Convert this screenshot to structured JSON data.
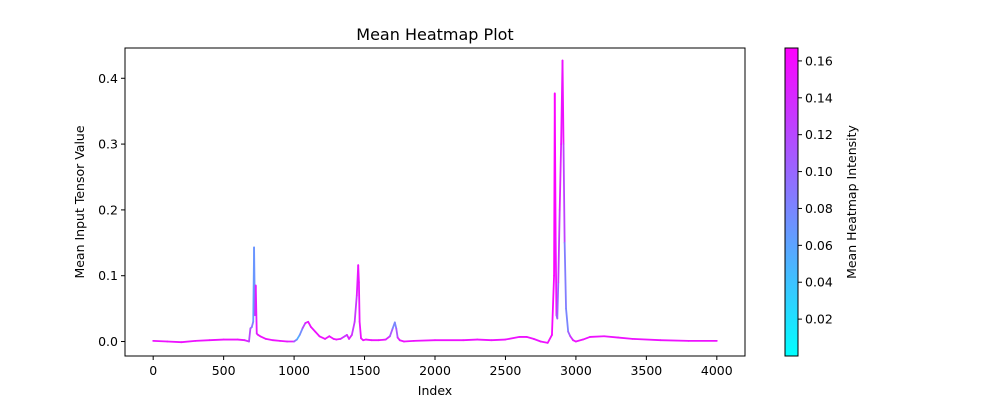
{
  "chart_data": {
    "type": "line",
    "title": "Mean Heatmap Plot",
    "xlabel": "Index",
    "ylabel": "Mean Input Tensor Value",
    "xlim": [
      -200,
      4200
    ],
    "ylim": [
      -0.022,
      0.446
    ],
    "xticks": [
      0,
      500,
      1000,
      1500,
      2000,
      2500,
      3000,
      3500,
      4000
    ],
    "yticks": [
      0.0,
      0.1,
      0.2,
      0.3,
      0.4
    ],
    "grid": false,
    "colorbar": {
      "label": "Mean Heatmap Intensity",
      "colormap": "cool",
      "range": [
        0.0,
        0.167
      ],
      "ticks": [
        0.02,
        0.04,
        0.06,
        0.08,
        0.1,
        0.12,
        0.14,
        0.16
      ],
      "min_color": "#00ffff",
      "max_color": "#ff00ff"
    },
    "series": [
      {
        "x": [
          0,
          100,
          200,
          300,
          400,
          500,
          600,
          650,
          680,
          690,
          700,
          710,
          716,
          722,
          728,
          735,
          745,
          760,
          800,
          850,
          900,
          950,
          1000,
          1020,
          1040,
          1060,
          1080,
          1100,
          1120,
          1150,
          1180,
          1220,
          1250,
          1280,
          1300,
          1330,
          1360,
          1375,
          1390,
          1410,
          1430,
          1445,
          1455,
          1460,
          1465,
          1475,
          1490,
          1510,
          1550,
          1600,
          1650,
          1680,
          1700,
          1715,
          1725,
          1735,
          1750,
          1780,
          1850,
          2000,
          2200,
          2300,
          2400,
          2500,
          2600,
          2650,
          2700,
          2750,
          2800,
          2830,
          2845,
          2850,
          2856,
          2862,
          2868,
          2875,
          2885,
          2895,
          2905,
          2912,
          2920,
          2930,
          2945,
          2960,
          2980,
          3000,
          3050,
          3100,
          3200,
          3300,
          3400,
          3600,
          3800,
          4000
        ],
        "y": [
          0.001,
          0.0,
          -0.001,
          0.001,
          0.002,
          0.003,
          0.003,
          0.002,
          0.0,
          0.02,
          0.022,
          0.03,
          0.143,
          0.04,
          0.085,
          0.012,
          0.01,
          0.008,
          0.004,
          0.002,
          0.001,
          0.0,
          0.0,
          0.003,
          0.01,
          0.02,
          0.028,
          0.03,
          0.022,
          0.015,
          0.008,
          0.004,
          0.008,
          0.004,
          0.003,
          0.004,
          0.008,
          0.01,
          0.004,
          0.01,
          0.03,
          0.07,
          0.116,
          0.09,
          0.03,
          0.005,
          0.002,
          0.003,
          0.002,
          0.002,
          0.003,
          0.008,
          0.02,
          0.029,
          0.02,
          0.006,
          0.002,
          0.0,
          0.001,
          0.002,
          0.002,
          0.003,
          0.002,
          0.003,
          0.007,
          0.007,
          0.004,
          0.0,
          -0.002,
          0.01,
          0.1,
          0.377,
          0.16,
          0.04,
          0.035,
          0.09,
          0.2,
          0.3,
          0.427,
          0.3,
          0.15,
          0.05,
          0.015,
          0.008,
          0.002,
          0.0,
          0.003,
          0.007,
          0.008,
          0.006,
          0.004,
          0.002,
          0.001,
          0.001
        ],
        "intensity": [
          0.155,
          0.155,
          0.155,
          0.155,
          0.155,
          0.155,
          0.155,
          0.155,
          0.13,
          0.11,
          0.1,
          0.08,
          0.05,
          0.09,
          0.16,
          0.14,
          0.15,
          0.155,
          0.155,
          0.155,
          0.155,
          0.155,
          0.14,
          0.06,
          0.05,
          0.1,
          0.14,
          0.155,
          0.155,
          0.155,
          0.155,
          0.155,
          0.155,
          0.155,
          0.155,
          0.155,
          0.12,
          0.13,
          0.155,
          0.14,
          0.12,
          0.14,
          0.155,
          0.155,
          0.155,
          0.155,
          0.155,
          0.155,
          0.155,
          0.155,
          0.155,
          0.13,
          0.09,
          0.07,
          0.09,
          0.13,
          0.155,
          0.155,
          0.155,
          0.155,
          0.155,
          0.155,
          0.155,
          0.155,
          0.155,
          0.155,
          0.155,
          0.155,
          0.155,
          0.16,
          0.165,
          0.165,
          0.165,
          0.15,
          0.09,
          0.12,
          0.14,
          0.15,
          0.16,
          0.15,
          0.1,
          0.07,
          0.09,
          0.12,
          0.155,
          0.155,
          0.155,
          0.155,
          0.155,
          0.155,
          0.155,
          0.155,
          0.155,
          0.155
        ]
      }
    ]
  }
}
